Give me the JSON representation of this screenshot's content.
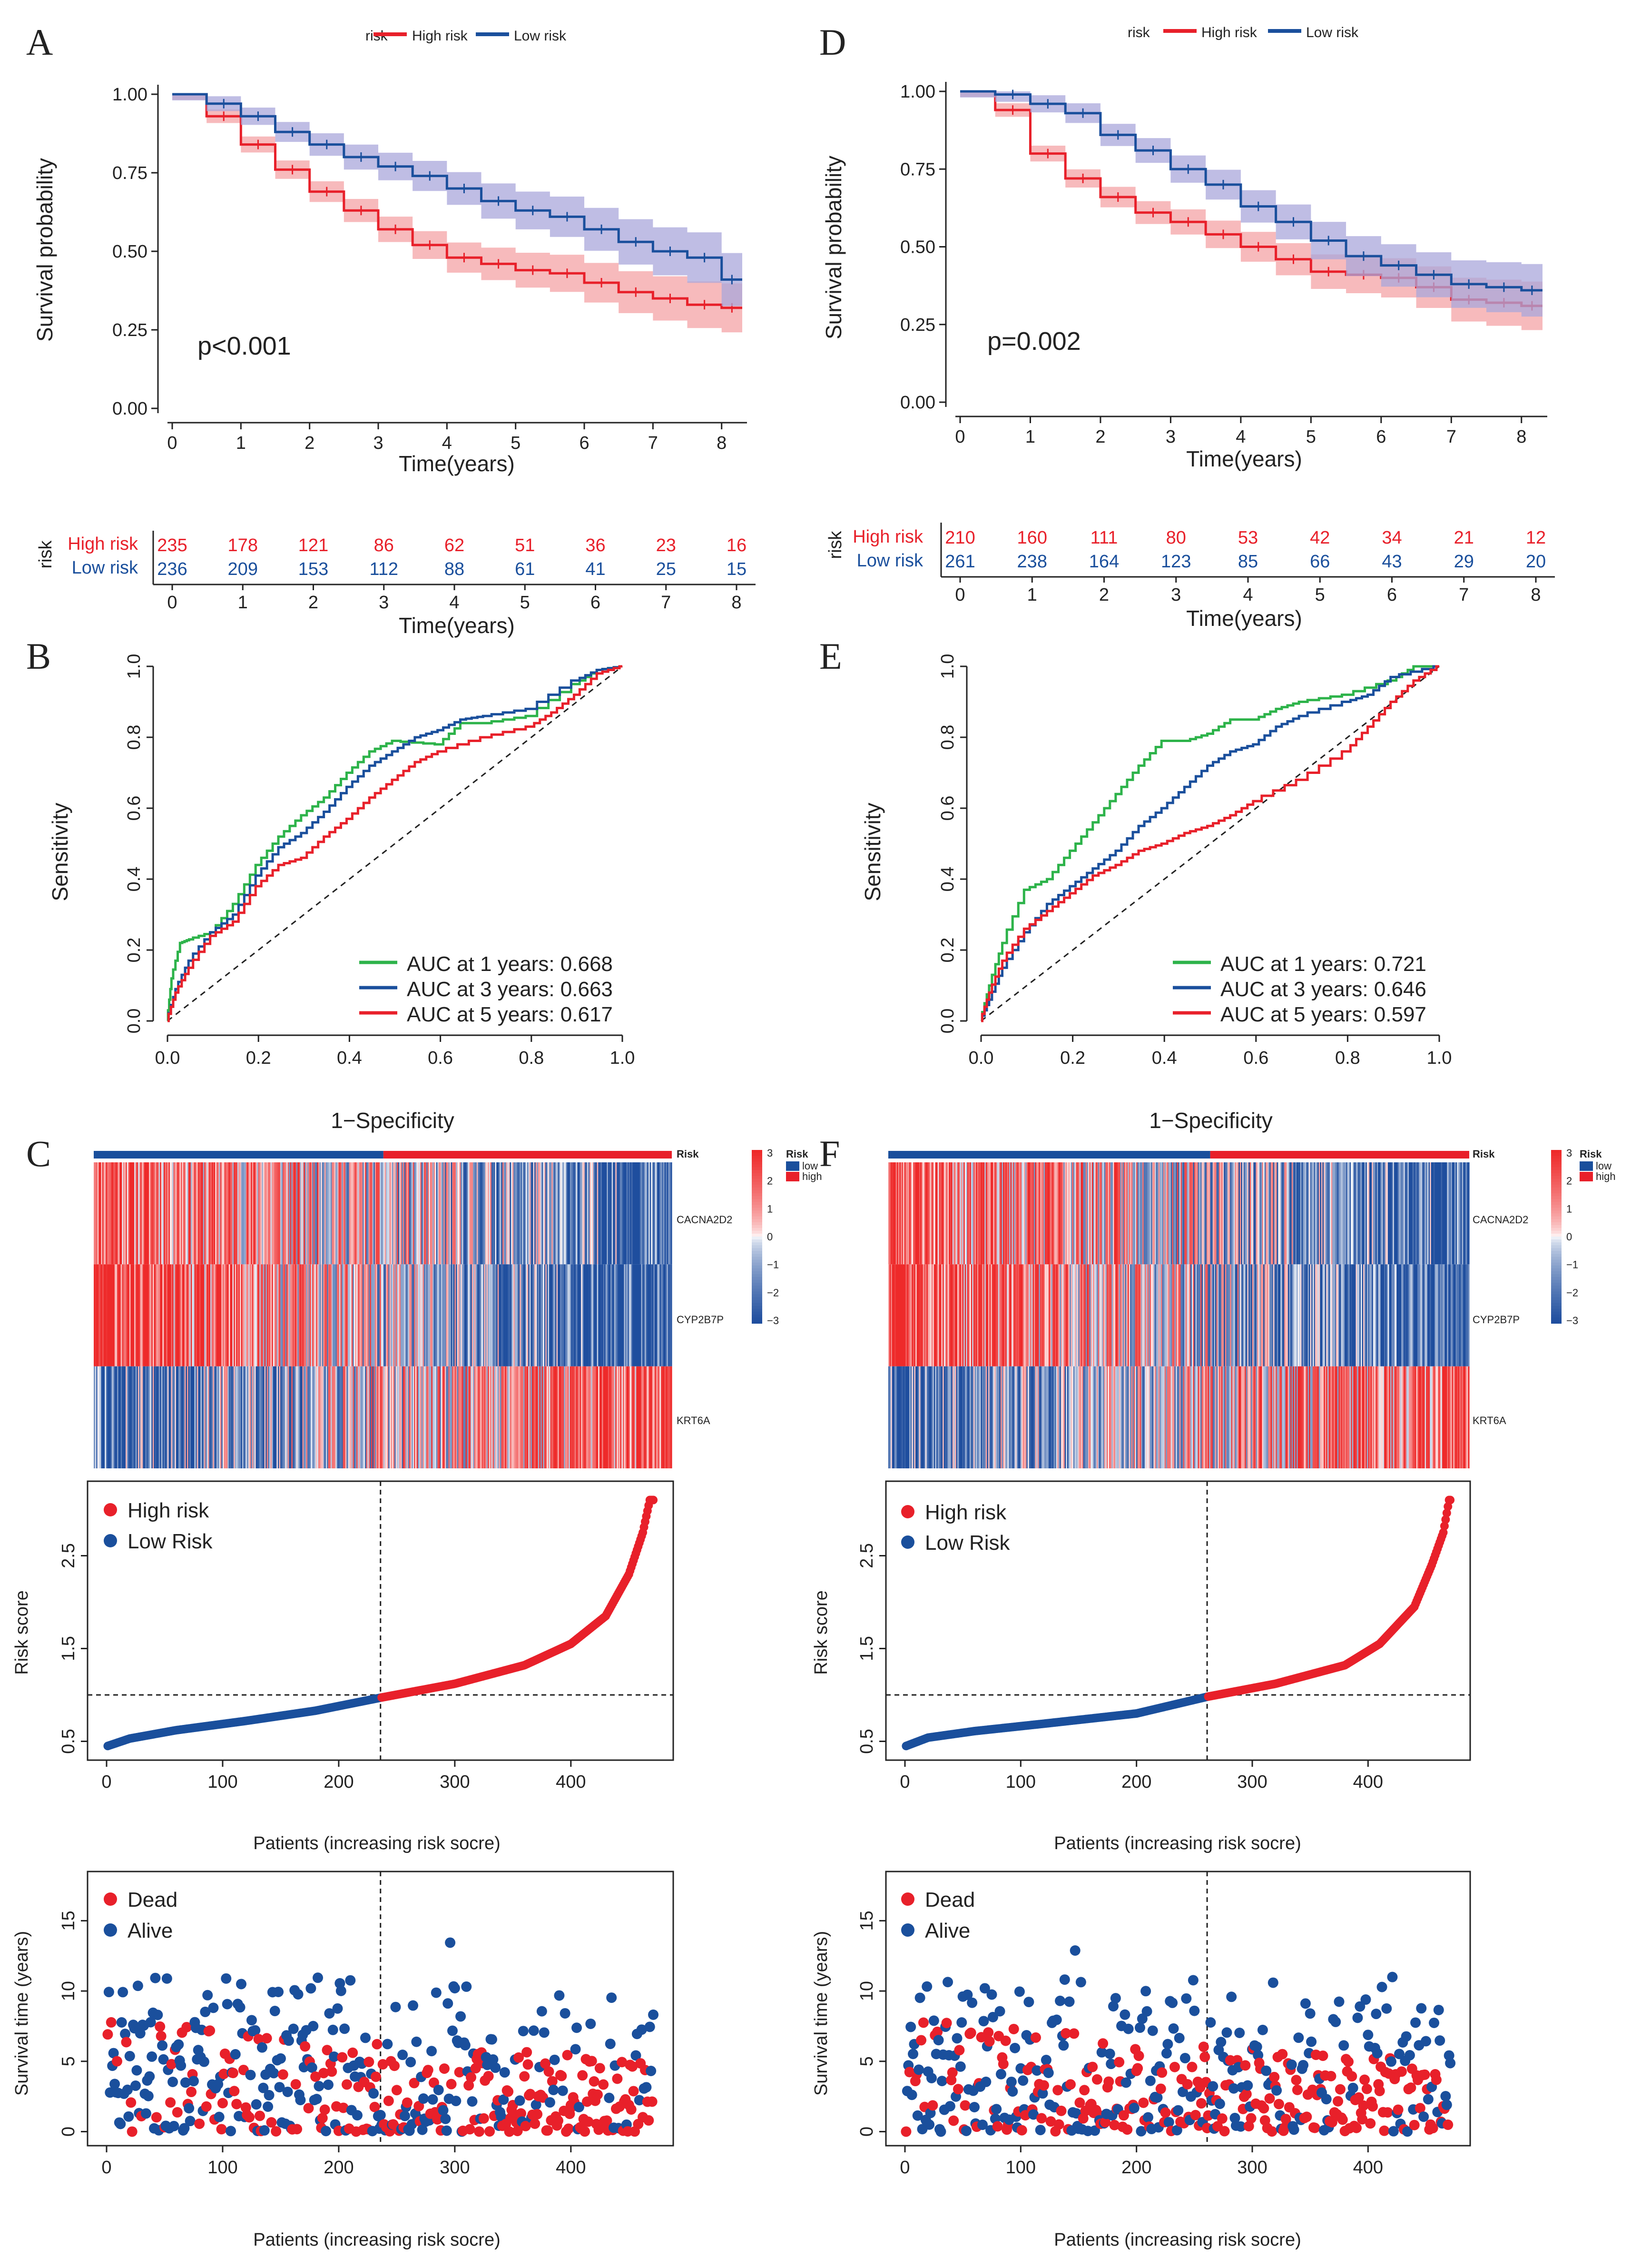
{
  "colors": {
    "high": "#e8202a",
    "low": "#1a4f9c",
    "high_band": "#f4a3a6",
    "low_band": "#a9a7db",
    "roc1": "#2db34a",
    "roc3": "#1a4f9c",
    "roc5": "#e8202a",
    "heat_high": "#ee2a2a",
    "heat_low": "#1f4e9e",
    "heat_mid": "#ffffff"
  },
  "chart_data": [
    {
      "panel": "A",
      "type": "line",
      "title": "",
      "legend_title": "risk",
      "legend": [
        "High risk",
        "Low risk"
      ],
      "xlabel": "Time(years)",
      "ylabel": "Survival probability",
      "xlim": [
        0,
        8.3
      ],
      "ylim": [
        0,
        1
      ],
      "xticks": [
        "0",
        "1",
        "2",
        "3",
        "4",
        "5",
        "6",
        "7",
        "8"
      ],
      "yticks": [
        "0.00",
        "0.25",
        "0.50",
        "0.75",
        "1.00"
      ],
      "annotation": "p<0.001",
      "series": [
        {
          "name": "High risk",
          "x": [
            0,
            0.5,
            1,
            1.5,
            2,
            2.5,
            3,
            3.5,
            4,
            4.5,
            5,
            5.5,
            6,
            6.5,
            7,
            7.5,
            8,
            8.3
          ],
          "values": [
            1.0,
            0.93,
            0.84,
            0.76,
            0.69,
            0.63,
            0.57,
            0.52,
            0.48,
            0.46,
            0.44,
            0.43,
            0.4,
            0.37,
            0.35,
            0.33,
            0.32,
            0.32
          ]
        },
        {
          "name": "Low risk",
          "x": [
            0,
            0.5,
            1,
            1.5,
            2,
            2.5,
            3,
            3.5,
            4,
            4.5,
            5,
            5.5,
            6,
            6.5,
            7,
            7.5,
            8,
            8.3
          ],
          "values": [
            1.0,
            0.97,
            0.93,
            0.88,
            0.84,
            0.8,
            0.77,
            0.74,
            0.7,
            0.66,
            0.63,
            0.61,
            0.57,
            0.53,
            0.5,
            0.48,
            0.41,
            0.41
          ]
        }
      ]
    },
    {
      "panel": "A-table",
      "type": "table",
      "row_title": "risk",
      "xlabel": "Time(years)",
      "columns": [
        "0",
        "1",
        "2",
        "3",
        "4",
        "5",
        "6",
        "7",
        "8"
      ],
      "rows": [
        {
          "name": "High risk",
          "values": [
            235,
            178,
            121,
            86,
            62,
            51,
            36,
            23,
            16
          ]
        },
        {
          "name": "Low risk",
          "values": [
            236,
            209,
            153,
            112,
            88,
            61,
            41,
            25,
            15
          ]
        }
      ]
    },
    {
      "panel": "D",
      "type": "line",
      "title": "",
      "legend_title": "risk",
      "legend": [
        "High risk",
        "Low risk"
      ],
      "xlabel": "Time(years)",
      "ylabel": "Survival probability",
      "xlim": [
        0,
        8.3
      ],
      "ylim": [
        0,
        1
      ],
      "xticks": [
        "0",
        "1",
        "2",
        "3",
        "4",
        "5",
        "6",
        "7",
        "8"
      ],
      "yticks": [
        "0.00",
        "0.25",
        "0.50",
        "0.75",
        "1.00"
      ],
      "annotation": "p=0.002",
      "series": [
        {
          "name": "High risk",
          "x": [
            0,
            0.5,
            1,
            1.5,
            2,
            2.5,
            3,
            3.5,
            4,
            4.5,
            5,
            5.5,
            6,
            6.5,
            7,
            7.5,
            8,
            8.3
          ],
          "values": [
            1.0,
            0.94,
            0.8,
            0.72,
            0.66,
            0.61,
            0.58,
            0.54,
            0.5,
            0.46,
            0.42,
            0.41,
            0.4,
            0.37,
            0.33,
            0.32,
            0.31,
            0.31
          ]
        },
        {
          "name": "Low risk",
          "x": [
            0,
            0.5,
            1,
            1.5,
            2,
            2.5,
            3,
            3.5,
            4,
            4.5,
            5,
            5.5,
            6,
            6.5,
            7,
            7.5,
            8,
            8.3
          ],
          "values": [
            1.0,
            0.99,
            0.96,
            0.93,
            0.86,
            0.81,
            0.75,
            0.7,
            0.63,
            0.58,
            0.52,
            0.47,
            0.44,
            0.41,
            0.38,
            0.37,
            0.36,
            0.36
          ]
        }
      ]
    },
    {
      "panel": "D-table",
      "type": "table",
      "row_title": "risk",
      "xlabel": "Time(years)",
      "columns": [
        "0",
        "1",
        "2",
        "3",
        "4",
        "5",
        "6",
        "7",
        "8"
      ],
      "rows": [
        {
          "name": "High risk",
          "values": [
            210,
            160,
            111,
            80,
            53,
            42,
            34,
            21,
            12
          ]
        },
        {
          "name": "Low risk",
          "values": [
            261,
            238,
            164,
            123,
            85,
            66,
            43,
            29,
            20
          ]
        }
      ]
    },
    {
      "panel": "B",
      "type": "line",
      "title": "",
      "xlabel": "1−Specificity",
      "ylabel": "Sensitivity",
      "xlim": [
        0,
        1
      ],
      "ylim": [
        0,
        1
      ],
      "xticks": [
        "0.0",
        "0.2",
        "0.4",
        "0.6",
        "0.8",
        "1.0"
      ],
      "yticks": [
        "0.0",
        "0.2",
        "0.4",
        "0.6",
        "0.8",
        "1.0"
      ],
      "series": [
        {
          "name": "AUC at 1 years: 0.668",
          "x": [
            0,
            0.01,
            0.03,
            0.05,
            0.1,
            0.15,
            0.2,
            0.25,
            0.3,
            0.35,
            0.4,
            0.45,
            0.5,
            0.6,
            0.65,
            0.7,
            0.8,
            0.9,
            0.95,
            1.0
          ],
          "values": [
            0,
            0.12,
            0.22,
            0.23,
            0.25,
            0.33,
            0.44,
            0.52,
            0.58,
            0.63,
            0.7,
            0.76,
            0.79,
            0.78,
            0.84,
            0.84,
            0.86,
            0.95,
            0.99,
            1.0
          ]
        },
        {
          "name": "AUC at 3 years: 0.663",
          "x": [
            0,
            0.02,
            0.05,
            0.1,
            0.15,
            0.2,
            0.25,
            0.3,
            0.35,
            0.4,
            0.45,
            0.5,
            0.55,
            0.6,
            0.65,
            0.7,
            0.8,
            0.9,
            0.95,
            1.0
          ],
          "values": [
            0,
            0.09,
            0.17,
            0.25,
            0.3,
            0.41,
            0.49,
            0.53,
            0.59,
            0.66,
            0.72,
            0.76,
            0.8,
            0.82,
            0.85,
            0.86,
            0.88,
            0.96,
            0.99,
            1.0
          ]
        },
        {
          "name": "AUC at 5 years: 0.617",
          "x": [
            0,
            0.02,
            0.05,
            0.1,
            0.15,
            0.2,
            0.25,
            0.3,
            0.35,
            0.4,
            0.45,
            0.5,
            0.55,
            0.6,
            0.7,
            0.8,
            0.85,
            0.9,
            0.95,
            1.0
          ],
          "values": [
            0,
            0.08,
            0.15,
            0.24,
            0.28,
            0.38,
            0.44,
            0.46,
            0.52,
            0.57,
            0.63,
            0.68,
            0.73,
            0.76,
            0.8,
            0.83,
            0.87,
            0.92,
            0.98,
            1.0
          ]
        }
      ]
    },
    {
      "panel": "E",
      "type": "line",
      "title": "",
      "xlabel": "1−Specificity",
      "ylabel": "Sensitivity",
      "xlim": [
        0,
        1
      ],
      "ylim": [
        0,
        1
      ],
      "xticks": [
        "0.0",
        "0.2",
        "0.4",
        "0.6",
        "0.8",
        "1.0"
      ],
      "yticks": [
        "0.0",
        "0.2",
        "0.4",
        "0.6",
        "0.8",
        "1.0"
      ],
      "series": [
        {
          "name": "AUC at 1 years: 0.721",
          "x": [
            0,
            0.02,
            0.05,
            0.1,
            0.15,
            0.2,
            0.25,
            0.3,
            0.35,
            0.4,
            0.45,
            0.5,
            0.55,
            0.6,
            0.65,
            0.7,
            0.8,
            0.9,
            0.95,
            1.0
          ],
          "values": [
            0,
            0.1,
            0.22,
            0.37,
            0.4,
            0.48,
            0.56,
            0.64,
            0.72,
            0.79,
            0.79,
            0.81,
            0.85,
            0.85,
            0.88,
            0.9,
            0.92,
            0.96,
            1.0,
            1.0
          ]
        },
        {
          "name": "AUC at 3 years: 0.646",
          "x": [
            0,
            0.02,
            0.05,
            0.1,
            0.15,
            0.2,
            0.25,
            0.3,
            0.35,
            0.4,
            0.45,
            0.5,
            0.55,
            0.6,
            0.65,
            0.7,
            0.8,
            0.85,
            0.9,
            1.0
          ],
          "values": [
            0,
            0.06,
            0.15,
            0.25,
            0.33,
            0.38,
            0.43,
            0.48,
            0.55,
            0.6,
            0.66,
            0.72,
            0.76,
            0.78,
            0.83,
            0.86,
            0.9,
            0.92,
            0.97,
            1.0
          ]
        },
        {
          "name": "AUC at 5 years: 0.597",
          "x": [
            0,
            0.02,
            0.05,
            0.1,
            0.15,
            0.2,
            0.25,
            0.3,
            0.35,
            0.4,
            0.45,
            0.5,
            0.55,
            0.6,
            0.7,
            0.8,
            0.85,
            0.9,
            0.95,
            1.0
          ],
          "values": [
            0,
            0.08,
            0.17,
            0.26,
            0.31,
            0.36,
            0.41,
            0.44,
            0.48,
            0.5,
            0.53,
            0.55,
            0.58,
            0.62,
            0.68,
            0.76,
            0.83,
            0.9,
            0.96,
            1.0
          ]
        }
      ]
    },
    {
      "panel": "C-heatmap",
      "type": "heatmap",
      "annotation_row": "Risk",
      "annotation_legend_title": "Risk",
      "annotation_levels": [
        "low",
        "high"
      ],
      "genes": [
        "CACNA2D2",
        "CYP2B7P",
        "KRT6A"
      ],
      "colorbar_ticks": [
        "3",
        "2",
        "1",
        "0",
        "−1",
        "−2",
        "−3"
      ],
      "n_patients": 471,
      "low_count": 236,
      "gene_trend": {
        "CACNA2D2": "high to low",
        "CYP2B7P": "high to low",
        "KRT6A": "low to high"
      }
    },
    {
      "panel": "F-heatmap",
      "type": "heatmap",
      "annotation_row": "Risk",
      "annotation_legend_title": "Risk",
      "annotation_levels": [
        "low",
        "high"
      ],
      "genes": [
        "CACNA2D2",
        "CYP2B7P",
        "KRT6A"
      ],
      "colorbar_ticks": [
        "3",
        "2",
        "1",
        "0",
        "−1",
        "−2",
        "−3"
      ],
      "n_patients": 471,
      "low_count": 261,
      "gene_trend": {
        "CACNA2D2": "high to low",
        "CYP2B7P": "high to low",
        "KRT6A": "low to high"
      }
    },
    {
      "panel": "C-riskscore",
      "type": "scatter",
      "legend": [
        "High risk",
        "Low Risk"
      ],
      "xlabel": "Patients (increasing risk socre)",
      "ylabel": "Risk score",
      "xlim": [
        0,
        480
      ],
      "ylim": [
        0.4,
        3.2
      ],
      "xticks": [
        "0",
        "100",
        "200",
        "300",
        "400"
      ],
      "yticks": [
        "0.5",
        "1.5",
        "2.5"
      ],
      "cutoff_x": 236,
      "cutoff_y": 1.0,
      "n_patients": 471,
      "curve_points": [
        [
          1,
          0.45
        ],
        [
          20,
          0.53
        ],
        [
          60,
          0.62
        ],
        [
          120,
          0.72
        ],
        [
          180,
          0.83
        ],
        [
          236,
          0.97
        ],
        [
          300,
          1.12
        ],
        [
          360,
          1.32
        ],
        [
          400,
          1.55
        ],
        [
          430,
          1.85
        ],
        [
          450,
          2.3
        ],
        [
          462,
          2.75
        ],
        [
          468,
          3.1
        ]
      ]
    },
    {
      "panel": "F-riskscore",
      "type": "scatter",
      "legend": [
        "High risk",
        "Low Risk"
      ],
      "xlabel": "Patients (increasing risk socre)",
      "ylabel": "Risk score",
      "xlim": [
        0,
        480
      ],
      "ylim": [
        0.4,
        3.2
      ],
      "xticks": [
        "0",
        "100",
        "200",
        "300",
        "400"
      ],
      "yticks": [
        "0.5",
        "1.5",
        "2.5"
      ],
      "cutoff_x": 261,
      "cutoff_y": 1.0,
      "n_patients": 471,
      "curve_points": [
        [
          1,
          0.45
        ],
        [
          20,
          0.54
        ],
        [
          60,
          0.61
        ],
        [
          120,
          0.69
        ],
        [
          200,
          0.8
        ],
        [
          261,
          0.98
        ],
        [
          320,
          1.12
        ],
        [
          380,
          1.32
        ],
        [
          410,
          1.55
        ],
        [
          440,
          1.95
        ],
        [
          455,
          2.4
        ],
        [
          465,
          2.75
        ],
        [
          470,
          3.1
        ]
      ]
    },
    {
      "panel": "C-survival",
      "type": "scatter",
      "legend": [
        "Dead",
        "Alive"
      ],
      "xlabel": "Patients (increasing risk socre)",
      "ylabel": "Survival time (years)",
      "xlim": [
        0,
        480
      ],
      "ylim": [
        -1,
        18.5
      ],
      "xticks": [
        "0",
        "100",
        "200",
        "300",
        "400"
      ],
      "yticks": [
        "0",
        "5",
        "10",
        "15"
      ],
      "cutoff_x": 236,
      "n_patients": 471,
      "seed": 7
    },
    {
      "panel": "F-survival",
      "type": "scatter",
      "legend": [
        "Dead",
        "Alive"
      ],
      "xlabel": "Patients (increasing risk socre)",
      "ylabel": "Survival time (years)",
      "xlim": [
        0,
        480
      ],
      "ylim": [
        -1,
        18.5
      ],
      "xticks": [
        "0",
        "100",
        "200",
        "300",
        "400"
      ],
      "yticks": [
        "0",
        "5",
        "10",
        "15"
      ],
      "cutoff_x": 261,
      "n_patients": 471,
      "seed": 19
    }
  ],
  "panel_letters": [
    "A",
    "B",
    "C",
    "D",
    "E",
    "F"
  ]
}
